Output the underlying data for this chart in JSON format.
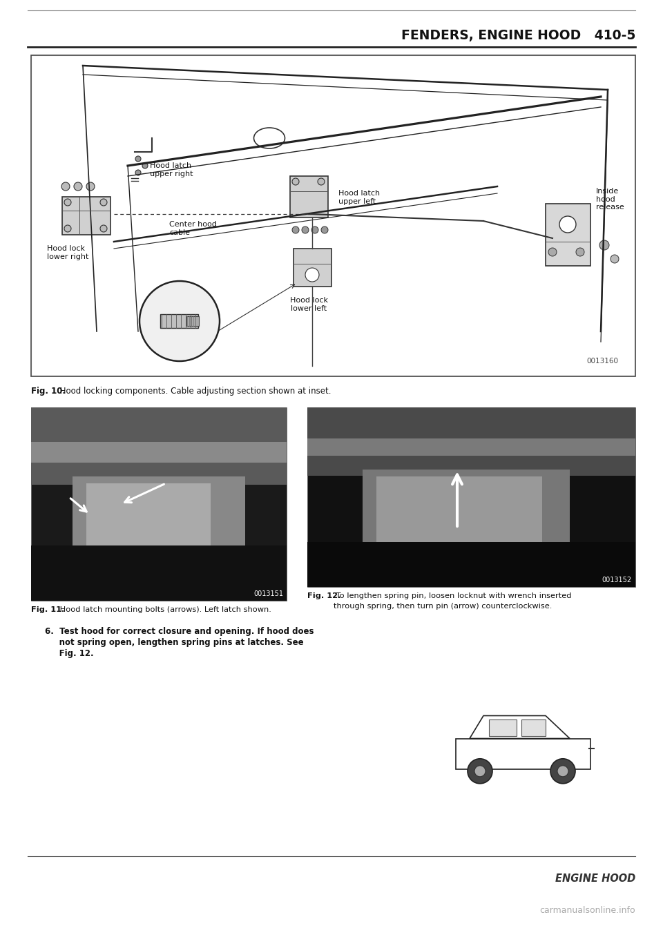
{
  "bg_color": "#ffffff",
  "header_text": "FENDERS, ENGINE HOOD   410-5",
  "fig10_caption_bold": "Fig. 10.",
  "fig10_caption_rest": " Hood locking components. Cable adjusting section shown at inset.",
  "fig11_caption_bold": "Fig. 11.",
  "fig11_caption_rest": " Hood latch mounting bolts (arrows). Left latch shown.",
  "fig12_caption_bold": "Fig. 12.",
  "fig12_caption_rest": " To lengthen spring pin, loosen locknut with wrench inserted",
  "fig12_caption_line2": "through spring, then turn pin (arrow) counterclockwise.",
  "step6_line1": "6.  Test hood for correct closure and opening. If hood does",
  "step6_line2": "     not spring open, lengthen spring pins at latches. See",
  "step6_line3": "     Fig. 12.",
  "footer_text": "ENGINE HOOD",
  "watermark_text": "carmanualsonline.info",
  "photo_num_11": "0013151",
  "photo_num_12": "0013152",
  "diagram_num": "0013160",
  "page_number": "410-5"
}
